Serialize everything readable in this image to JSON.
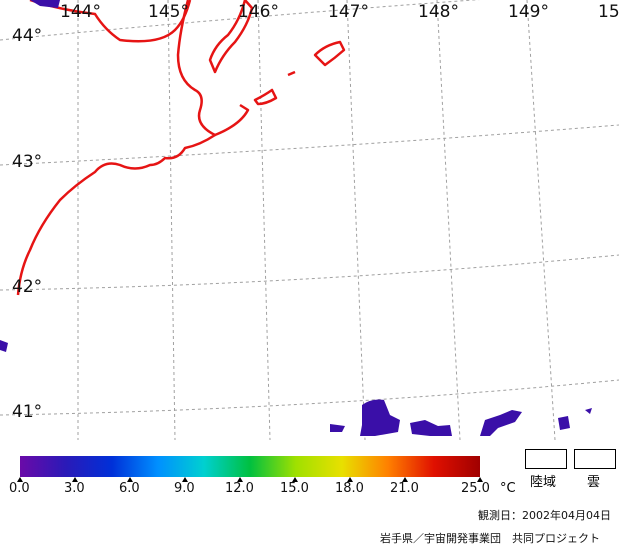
{
  "map": {
    "longitude_labels": [
      "144°",
      "145°",
      "146°",
      "147°",
      "148°",
      "149°",
      "15"
    ],
    "latitude_labels": [
      "44°",
      "43°",
      "42°",
      "41°"
    ],
    "coastline_color": "#e61414",
    "grid_color": "#a0a0a0",
    "sst_patch_colors": [
      "#3a0fa8",
      "#5a1fc0",
      "#2a18b8"
    ]
  },
  "colorbar": {
    "ticks": [
      "0.0",
      "3.0",
      "6.0",
      "9.0",
      "12.0",
      "15.0",
      "18.0",
      "21.0",
      "25.0"
    ],
    "unit": "°C",
    "stops": [
      "#6a0aa8",
      "#2a1ab8",
      "#0030d8",
      "#0090ff",
      "#00d0d0",
      "#00c040",
      "#a0e000",
      "#e8e000",
      "#ff8000",
      "#e01000",
      "#a00000"
    ]
  },
  "legend": {
    "land_label": "陸域",
    "cloud_label": "雲"
  },
  "footer": {
    "observation_date": "観測日：2002年04月04日",
    "credit": "岩手県／宇宙開発事業団　共同プロジェクト"
  }
}
